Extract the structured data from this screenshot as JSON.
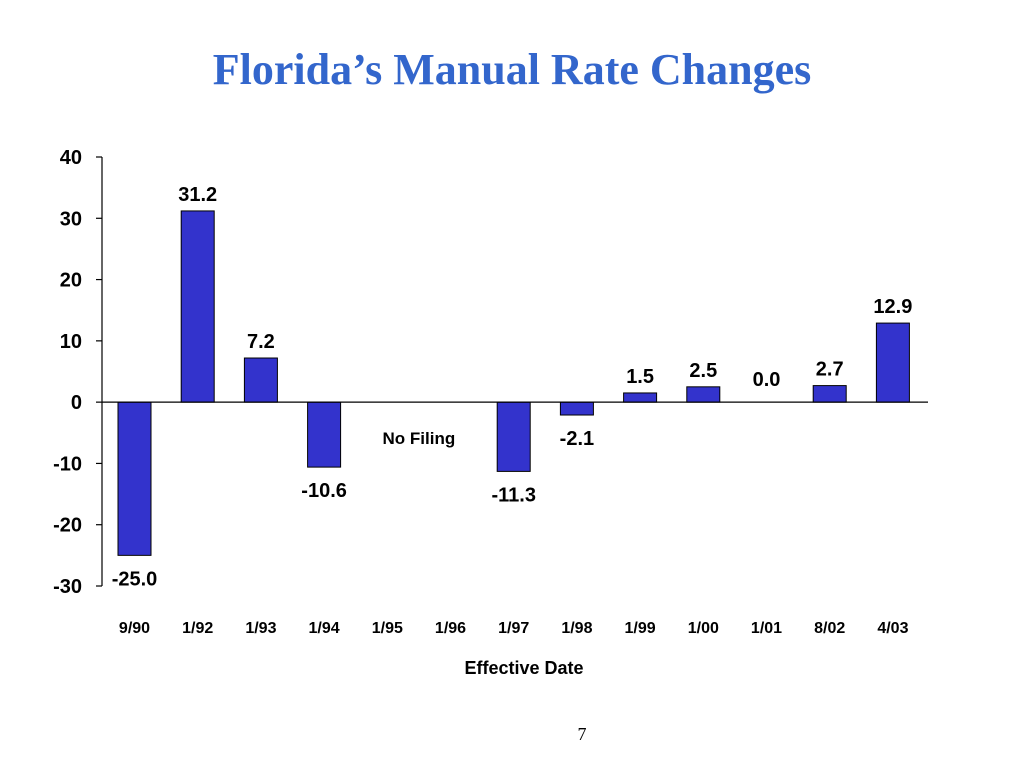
{
  "slide": {
    "title": "Florida’s Manual Rate Changes",
    "page_number": "7"
  },
  "colors": {
    "title": "#3366cc",
    "bar_fill": "#3333cc",
    "bar_stroke": "#000000",
    "axis": "#000000"
  },
  "chart_data": {
    "type": "bar",
    "title": "",
    "xlabel": "Effective Date",
    "ylabel": "",
    "ylim": [
      -30,
      40
    ],
    "yticks": [
      40,
      30,
      20,
      10,
      0,
      -10,
      -20,
      -30
    ],
    "ytick_labels": [
      "40",
      "30",
      "20",
      "10",
      "0",
      "-10",
      "-20",
      "-30"
    ],
    "grid": false,
    "legend": "none",
    "categories": [
      "9/90",
      "1/92",
      "1/93",
      "1/94",
      "1/95",
      "1/96",
      "1/97",
      "1/98",
      "1/99",
      "1/00",
      "1/01",
      "8/02",
      "4/03"
    ],
    "values": [
      -25.0,
      31.2,
      7.2,
      -10.6,
      null,
      null,
      -11.3,
      -2.1,
      1.5,
      2.5,
      0.0,
      2.7,
      12.9
    ],
    "data_labels": [
      "-25.0",
      "31.2",
      "7.2",
      "-10.6",
      "",
      "",
      "-11.3",
      "-2.1",
      "1.5",
      "2.5",
      "0.0",
      "2.7",
      "12.9"
    ],
    "annotations": [
      {
        "text": "No Filing",
        "categories": [
          "1/95",
          "1/96"
        ]
      }
    ]
  }
}
